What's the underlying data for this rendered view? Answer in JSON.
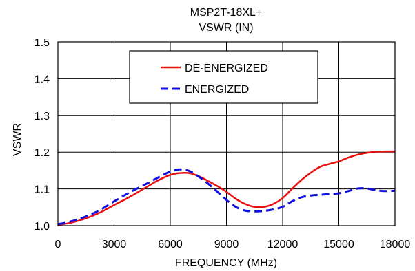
{
  "chart_data": {
    "type": "line",
    "title": "MSP2T-18XL+",
    "subtitle": "VSWR (IN)",
    "xlabel": "FREQUENCY (MHz)",
    "ylabel": "VSWR",
    "xlim": [
      0,
      18000
    ],
    "ylim": [
      1.0,
      1.5
    ],
    "x_ticks": [
      0,
      3000,
      6000,
      9000,
      12000,
      15000,
      18000
    ],
    "y_ticks": [
      1.0,
      1.1,
      1.2,
      1.3,
      1.4,
      1.5
    ],
    "x_tick_labels": [
      "0",
      "3000",
      "6000",
      "9000",
      "12000",
      "15000",
      "18000"
    ],
    "y_tick_labels": [
      "1.0",
      "1.1",
      "1.2",
      "1.3",
      "1.4",
      "1.5"
    ],
    "grid": true,
    "legend_position": "top-center",
    "series": [
      {
        "name": "DE-ENERGIZED",
        "color": "#e8100f",
        "style": "solid",
        "x": [
          0,
          500,
          1000,
          1500,
          2000,
          2500,
          3000,
          3500,
          4000,
          4500,
          5000,
          5500,
          6000,
          6500,
          7000,
          7500,
          8000,
          8500,
          9000,
          9500,
          10000,
          10500,
          11000,
          11500,
          12000,
          12500,
          13000,
          13500,
          14000,
          14500,
          15000,
          15500,
          16000,
          16500,
          17000,
          17500,
          18000
        ],
        "y": [
          1.002,
          1.006,
          1.012,
          1.02,
          1.03,
          1.042,
          1.056,
          1.069,
          1.083,
          1.098,
          1.113,
          1.127,
          1.138,
          1.143,
          1.143,
          1.135,
          1.122,
          1.108,
          1.092,
          1.073,
          1.059,
          1.051,
          1.051,
          1.059,
          1.075,
          1.1,
          1.124,
          1.144,
          1.16,
          1.168,
          1.175,
          1.185,
          1.193,
          1.198,
          1.201,
          1.202,
          1.202
        ]
      },
      {
        "name": "ENERGIZED",
        "color": "#1010e0",
        "style": "dashed",
        "x": [
          0,
          500,
          1000,
          1500,
          2000,
          2500,
          3000,
          3500,
          4000,
          4500,
          5000,
          5500,
          6000,
          6500,
          7000,
          7500,
          8000,
          8500,
          9000,
          9500,
          10000,
          10500,
          11000,
          11500,
          12000,
          12500,
          13000,
          13500,
          14000,
          14500,
          15000,
          15500,
          16000,
          16500,
          17000,
          17500,
          18000
        ],
        "y": [
          1.004,
          1.009,
          1.016,
          1.025,
          1.036,
          1.05,
          1.066,
          1.081,
          1.095,
          1.108,
          1.121,
          1.135,
          1.147,
          1.153,
          1.149,
          1.134,
          1.115,
          1.093,
          1.07,
          1.051,
          1.041,
          1.039,
          1.04,
          1.044,
          1.051,
          1.066,
          1.077,
          1.082,
          1.084,
          1.086,
          1.088,
          1.094,
          1.101,
          1.101,
          1.096,
          1.094,
          1.095
        ]
      }
    ]
  }
}
